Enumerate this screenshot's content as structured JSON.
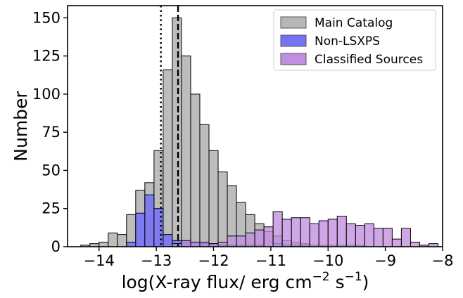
{
  "chart_data": {
    "type": "bar",
    "title": "",
    "xlabel": {
      "prefix": "log(X-ray flux/ erg cm",
      "exp1": "−2",
      "mid": " s",
      "exp2": "−1",
      "suffix": ")"
    },
    "ylabel": "Number",
    "xlim": [
      -14.55,
      -8.0
    ],
    "ylim": [
      0,
      158
    ],
    "x_ticks": [
      {
        "value": -14,
        "label": "−14"
      },
      {
        "value": -13,
        "label": "−13"
      },
      {
        "value": -12,
        "label": "−12"
      },
      {
        "value": -11,
        "label": "−11"
      },
      {
        "value": -10,
        "label": "−10"
      },
      {
        "value": -9,
        "label": "−9"
      },
      {
        "value": -8,
        "label": "−8"
      }
    ],
    "y_ticks": [
      {
        "value": 0,
        "label": "0"
      },
      {
        "value": 25,
        "label": "25"
      },
      {
        "value": 50,
        "label": "50"
      },
      {
        "value": 75,
        "label": "75"
      },
      {
        "value": 100,
        "label": "100"
      },
      {
        "value": 125,
        "label": "125"
      },
      {
        "value": 150,
        "label": "150"
      }
    ],
    "bin_edges": [
      -14.32,
      -14.16,
      -14.0,
      -13.84,
      -13.68,
      -13.52,
      -13.36,
      -13.2,
      -13.04,
      -12.88,
      -12.72,
      -12.56,
      -12.4,
      -12.24,
      -12.08,
      -11.92,
      -11.76,
      -11.6,
      -11.44,
      -11.28,
      -11.12,
      -10.96,
      -10.8,
      -10.64,
      -10.48,
      -10.32,
      -10.16,
      -10.0,
      -9.84,
      -9.68,
      -9.52,
      -9.36,
      -9.2,
      -9.04,
      -8.88,
      -8.72,
      -8.56,
      -8.4,
      -8.24,
      -8.08,
      -7.92
    ],
    "series": [
      {
        "name": "Main Catalog",
        "color": "#b7b7b7",
        "values": [
          1,
          2,
          3,
          9,
          8,
          21,
          37,
          42,
          63,
          116,
          150,
          125,
          100,
          80,
          63,
          49,
          40,
          29,
          21,
          15,
          10,
          7,
          4,
          3,
          2,
          1,
          1,
          1,
          1,
          1,
          1,
          0,
          0,
          0,
          0,
          0,
          0,
          0,
          0,
          0
        ]
      },
      {
        "name": "Non-LSXPS",
        "color": "#7472f6",
        "values": [
          0,
          0,
          0,
          0,
          0,
          3,
          22,
          34,
          25,
          8,
          4,
          3,
          3,
          2,
          2,
          1,
          1,
          1,
          1,
          1,
          0,
          2,
          1,
          1,
          1,
          0,
          0,
          0,
          0,
          0,
          0,
          0,
          0,
          0,
          0,
          0,
          0,
          0,
          0,
          0
        ]
      },
      {
        "name": "Classified Sources",
        "color": "#c18ee0",
        "values": [
          0,
          0,
          0,
          0,
          0,
          0,
          0,
          0,
          0,
          0,
          2,
          4,
          3,
          3,
          2,
          3,
          7,
          7,
          9,
          11,
          13,
          23,
          18,
          19,
          19,
          15,
          17,
          18,
          20,
          15,
          14,
          15,
          12,
          12,
          5,
          12,
          3,
          1,
          2,
          0
        ]
      }
    ],
    "vlines": [
      {
        "x": -12.92,
        "style": "dotted",
        "color": "#000000"
      },
      {
        "x": -12.62,
        "style": "dashed",
        "color": "#000000"
      }
    ],
    "legend": {
      "placement": "top-right"
    },
    "grid": false
  }
}
